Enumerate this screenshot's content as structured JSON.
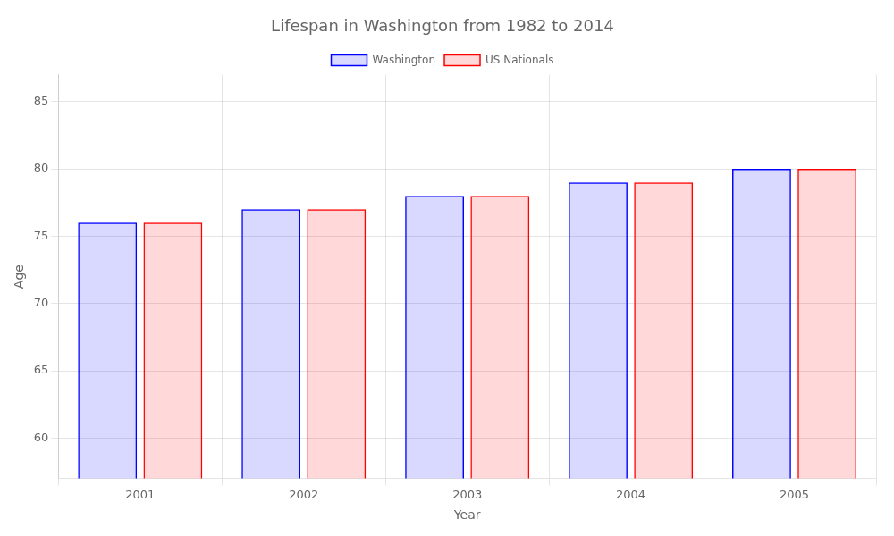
{
  "chart_data": {
    "type": "bar",
    "title": "Lifespan in Washington from 1982 to 2014",
    "xlabel": "Year",
    "ylabel": "Age",
    "categories": [
      "2001",
      "2002",
      "2003",
      "2004",
      "2005"
    ],
    "series": [
      {
        "name": "Washington",
        "color": "#0000ff",
        "values": [
          76,
          77,
          78,
          79,
          80
        ]
      },
      {
        "name": "US Nationals",
        "color": "#ff0000",
        "values": [
          76,
          77,
          78,
          79,
          80
        ]
      }
    ],
    "ylim": [
      57,
      87
    ],
    "yticks": [
      60,
      65,
      70,
      75,
      80,
      85
    ],
    "grid": true,
    "legend": "top"
  }
}
